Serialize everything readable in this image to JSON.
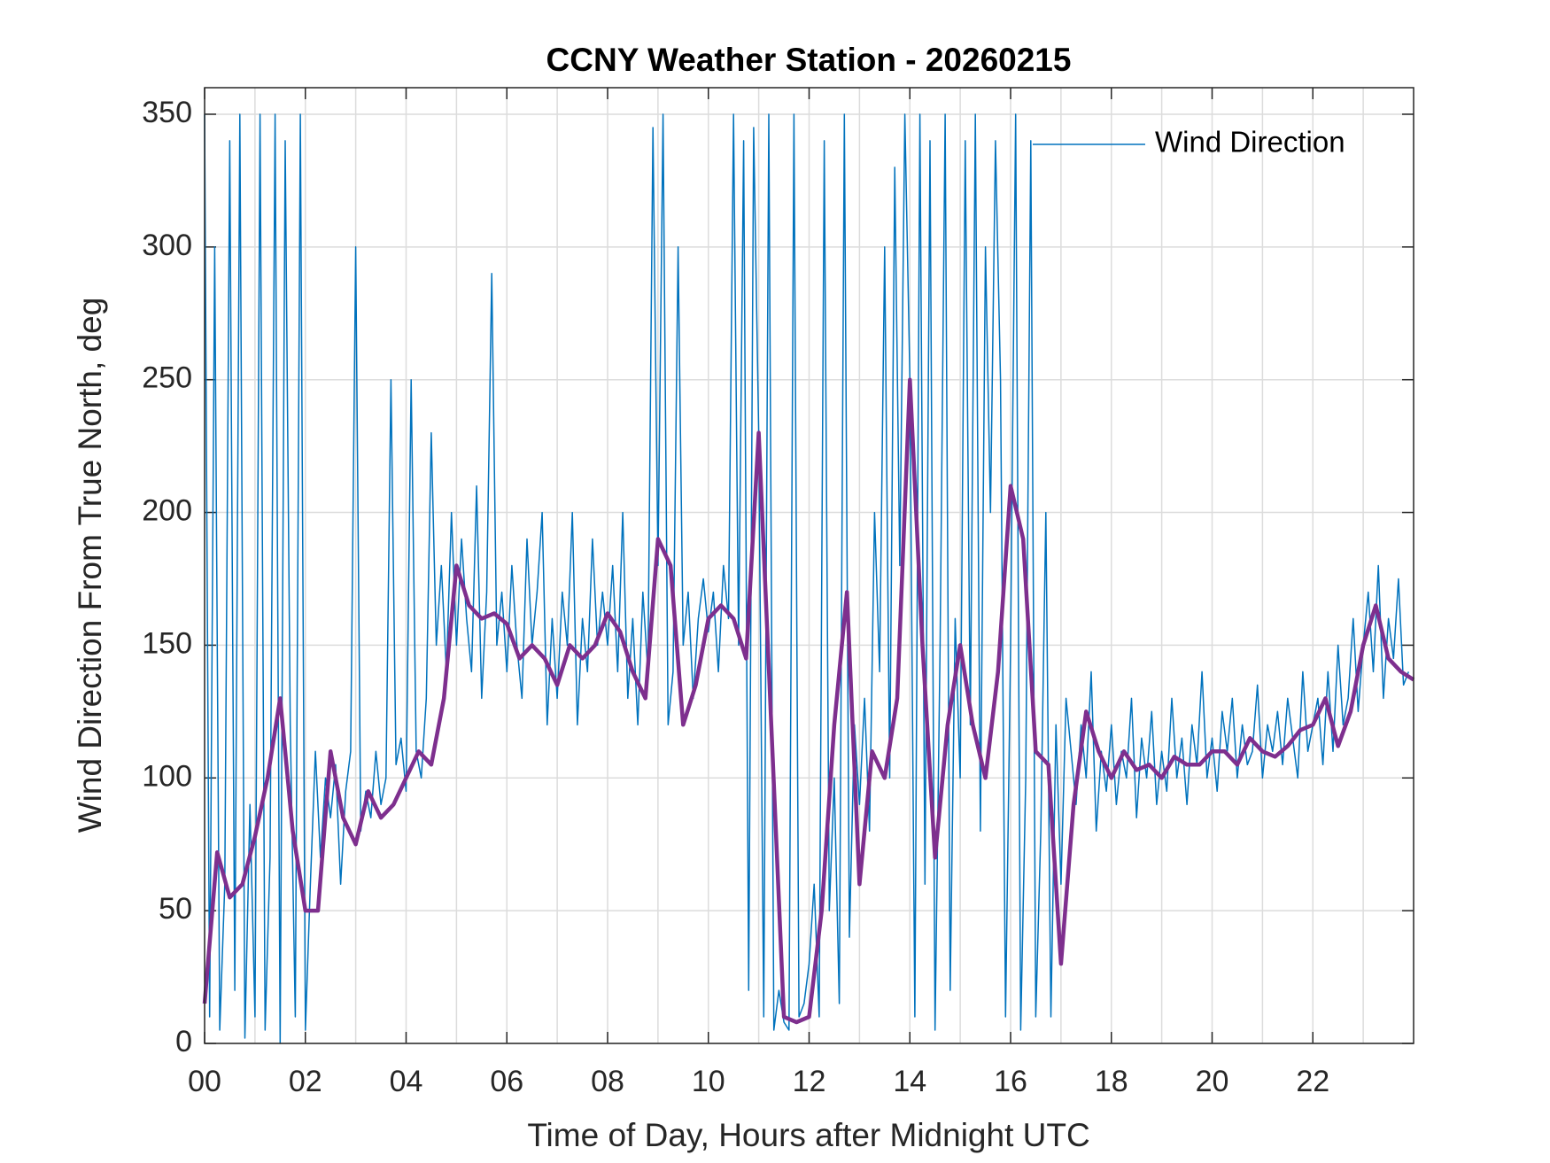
{
  "chart_data": {
    "type": "line",
    "title": "CCNY Weather Station - 20260215",
    "xlabel": "Time of Day, Hours after Midnight UTC",
    "ylabel": "Wind Direction From True North, deg",
    "xlim": [
      0,
      24
    ],
    "ylim": [
      0,
      360
    ],
    "xticks": [
      {
        "value": 0,
        "label": "00"
      },
      {
        "value": 2,
        "label": "02"
      },
      {
        "value": 4,
        "label": "04"
      },
      {
        "value": 6,
        "label": "06"
      },
      {
        "value": 8,
        "label": "08"
      },
      {
        "value": 10,
        "label": "10"
      },
      {
        "value": 12,
        "label": "12"
      },
      {
        "value": 14,
        "label": "14"
      },
      {
        "value": 16,
        "label": "16"
      },
      {
        "value": 18,
        "label": "18"
      },
      {
        "value": 20,
        "label": "20"
      },
      {
        "value": 22,
        "label": "22"
      }
    ],
    "xminorticks": [
      1,
      3,
      5,
      7,
      9,
      11,
      13,
      15,
      17,
      19,
      21,
      23
    ],
    "yticks": [
      0,
      50,
      100,
      150,
      200,
      250,
      300,
      350
    ],
    "grid": true,
    "legend": "upper right",
    "series": [
      {
        "name": "Wind Direction",
        "color": "#0072BD",
        "width": 1.5,
        "x": [
          0,
          0.1,
          0.2,
          0.3,
          0.4,
          0.5,
          0.6,
          0.7,
          0.8,
          0.9,
          1,
          1.1,
          1.2,
          1.3,
          1.4,
          1.5,
          1.6,
          1.7,
          1.8,
          1.9,
          2,
          2.1,
          2.2,
          2.3,
          2.4,
          2.5,
          2.6,
          2.7,
          2.8,
          2.9,
          3,
          3.1,
          3.2,
          3.3,
          3.4,
          3.5,
          3.6,
          3.7,
          3.8,
          3.9,
          4,
          4.1,
          4.2,
          4.3,
          4.4,
          4.5,
          4.6,
          4.7,
          4.8,
          4.9,
          5,
          5.1,
          5.2,
          5.3,
          5.4,
          5.5,
          5.6,
          5.7,
          5.8,
          5.9,
          6,
          6.1,
          6.2,
          6.3,
          6.4,
          6.5,
          6.6,
          6.7,
          6.8,
          6.9,
          7,
          7.1,
          7.2,
          7.3,
          7.4,
          7.5,
          7.6,
          7.7,
          7.8,
          7.9,
          8,
          8.1,
          8.2,
          8.3,
          8.4,
          8.5,
          8.6,
          8.7,
          8.8,
          8.9,
          9,
          9.1,
          9.2,
          9.3,
          9.4,
          9.5,
          9.6,
          9.7,
          9.8,
          9.9,
          10,
          10.1,
          10.2,
          10.3,
          10.4,
          10.5,
          10.6,
          10.7,
          10.8,
          10.9,
          11,
          11.1,
          11.2,
          11.3,
          11.4,
          11.5,
          11.6,
          11.7,
          11.8,
          11.9,
          12,
          12.1,
          12.2,
          12.3,
          12.4,
          12.5,
          12.6,
          12.7,
          12.8,
          12.9,
          13,
          13.1,
          13.2,
          13.3,
          13.4,
          13.5,
          13.6,
          13.7,
          13.8,
          13.9,
          14,
          14.1,
          14.2,
          14.3,
          14.4,
          14.5,
          14.6,
          14.7,
          14.8,
          14.9,
          15,
          15.1,
          15.2,
          15.3,
          15.4,
          15.5,
          15.6,
          15.7,
          15.8,
          15.9,
          16,
          16.1,
          16.2,
          16.3,
          16.4,
          16.5,
          16.6,
          16.7,
          16.8,
          16.9,
          17,
          17.1,
          17.2,
          17.3,
          17.4,
          17.5,
          17.6,
          17.7,
          17.8,
          17.9,
          18,
          18.1,
          18.2,
          18.3,
          18.4,
          18.5,
          18.6,
          18.7,
          18.8,
          18.9,
          19,
          19.1,
          19.2,
          19.3,
          19.4,
          19.5,
          19.6,
          19.7,
          19.8,
          19.9,
          20,
          20.1,
          20.2,
          20.3,
          20.4,
          20.5,
          20.6,
          20.7,
          20.8,
          20.9,
          21,
          21.1,
          21.2,
          21.3,
          21.4,
          21.5,
          21.6,
          21.7,
          21.8,
          21.9,
          22,
          22.1,
          22.2,
          22.3,
          22.4,
          22.5,
          22.6,
          22.7,
          22.8,
          22.9,
          23,
          23.1,
          23.2,
          23.3,
          23.4,
          23.5,
          23.6,
          23.7,
          23.8,
          23.9
        ],
        "values": [
          350,
          10,
          300,
          5,
          60,
          340,
          20,
          350,
          2,
          90,
          10,
          350,
          5,
          70,
          350,
          0,
          340,
          120,
          10,
          350,
          5,
          60,
          110,
          70,
          100,
          85,
          105,
          60,
          95,
          110,
          300,
          80,
          95,
          85,
          110,
          90,
          100,
          250,
          105,
          115,
          95,
          250,
          110,
          100,
          130,
          230,
          150,
          180,
          140,
          200,
          150,
          190,
          160,
          140,
          210,
          130,
          170,
          290,
          150,
          170,
          140,
          180,
          150,
          130,
          190,
          150,
          170,
          200,
          120,
          160,
          130,
          170,
          150,
          200,
          120,
          160,
          140,
          190,
          150,
          170,
          150,
          180,
          140,
          200,
          130,
          160,
          120,
          170,
          140,
          345,
          180,
          350,
          120,
          140,
          300,
          150,
          170,
          130,
          160,
          175,
          155,
          170,
          140,
          180,
          160,
          350,
          150,
          340,
          20,
          345,
          230,
          10,
          350,
          5,
          20,
          8,
          5,
          350,
          10,
          15,
          30,
          60,
          10,
          340,
          50,
          100,
          15,
          350,
          40,
          120,
          90,
          130,
          80,
          200,
          140,
          300,
          100,
          330,
          180,
          350,
          250,
          10,
          350,
          60,
          340,
          5,
          150,
          350,
          20,
          160,
          100,
          340,
          120,
          350,
          80,
          300,
          200,
          340,
          250,
          10,
          150,
          350,
          5,
          100,
          340,
          10,
          80,
          200,
          10,
          120,
          60,
          130,
          110,
          90,
          120,
          100,
          140,
          80,
          110,
          95,
          120,
          90,
          110,
          100,
          130,
          85,
          115,
          100,
          125,
          90,
          110,
          95,
          130,
          100,
          115,
          90,
          120,
          105,
          140,
          100,
          115,
          95,
          125,
          110,
          130,
          100,
          120,
          105,
          110,
          135,
          100,
          120,
          110,
          125,
          105,
          130,
          115,
          100,
          140,
          110,
          120,
          130,
          105,
          140,
          110,
          150,
          120,
          130,
          160,
          125,
          150,
          170,
          140,
          180,
          130,
          160,
          145,
          175,
          135,
          140
        ]
      },
      {
        "color": "#7E2F8E",
        "width": 4.5,
        "x": [
          0,
          0.25,
          0.5,
          0.75,
          1,
          1.25,
          1.5,
          1.75,
          2,
          2.25,
          2.5,
          2.75,
          3,
          3.25,
          3.5,
          3.75,
          4,
          4.25,
          4.5,
          4.75,
          5,
          5.25,
          5.5,
          5.75,
          6,
          6.25,
          6.5,
          6.75,
          7,
          7.25,
          7.5,
          7.75,
          8,
          8.25,
          8.5,
          8.75,
          9,
          9.25,
          9.5,
          9.75,
          10,
          10.25,
          10.5,
          10.75,
          11,
          11.25,
          11.5,
          11.75,
          12,
          12.25,
          12.5,
          12.75,
          13,
          13.25,
          13.5,
          13.75,
          14,
          14.25,
          14.5,
          14.75,
          15,
          15.25,
          15.5,
          15.75,
          16,
          16.25,
          16.5,
          16.75,
          17,
          17.25,
          17.5,
          17.75,
          18,
          18.25,
          18.5,
          18.75,
          19,
          19.25,
          19.5,
          19.75,
          20,
          20.25,
          20.5,
          20.75,
          21,
          21.25,
          21.5,
          21.75,
          22,
          22.25,
          22.5,
          22.75,
          23,
          23.25,
          23.5,
          23.75,
          24
        ],
        "values": [
          15,
          72,
          55,
          60,
          78,
          100,
          130,
          80,
          50,
          50,
          110,
          85,
          75,
          95,
          85,
          90,
          100,
          110,
          105,
          130,
          180,
          165,
          160,
          162,
          158,
          145,
          150,
          145,
          135,
          150,
          145,
          150,
          162,
          155,
          140,
          130,
          190,
          180,
          120,
          135,
          160,
          165,
          160,
          145,
          230,
          120,
          10,
          8,
          10,
          50,
          120,
          170,
          60,
          110,
          100,
          130,
          250,
          150,
          70,
          120,
          150,
          120,
          100,
          140,
          210,
          190,
          110,
          105,
          30,
          90,
          125,
          110,
          100,
          110,
          103,
          105,
          100,
          108,
          105,
          105,
          110,
          110,
          105,
          115,
          110,
          108,
          112,
          118,
          120,
          130,
          112,
          125,
          150,
          165,
          145,
          140,
          137
        ]
      }
    ]
  }
}
